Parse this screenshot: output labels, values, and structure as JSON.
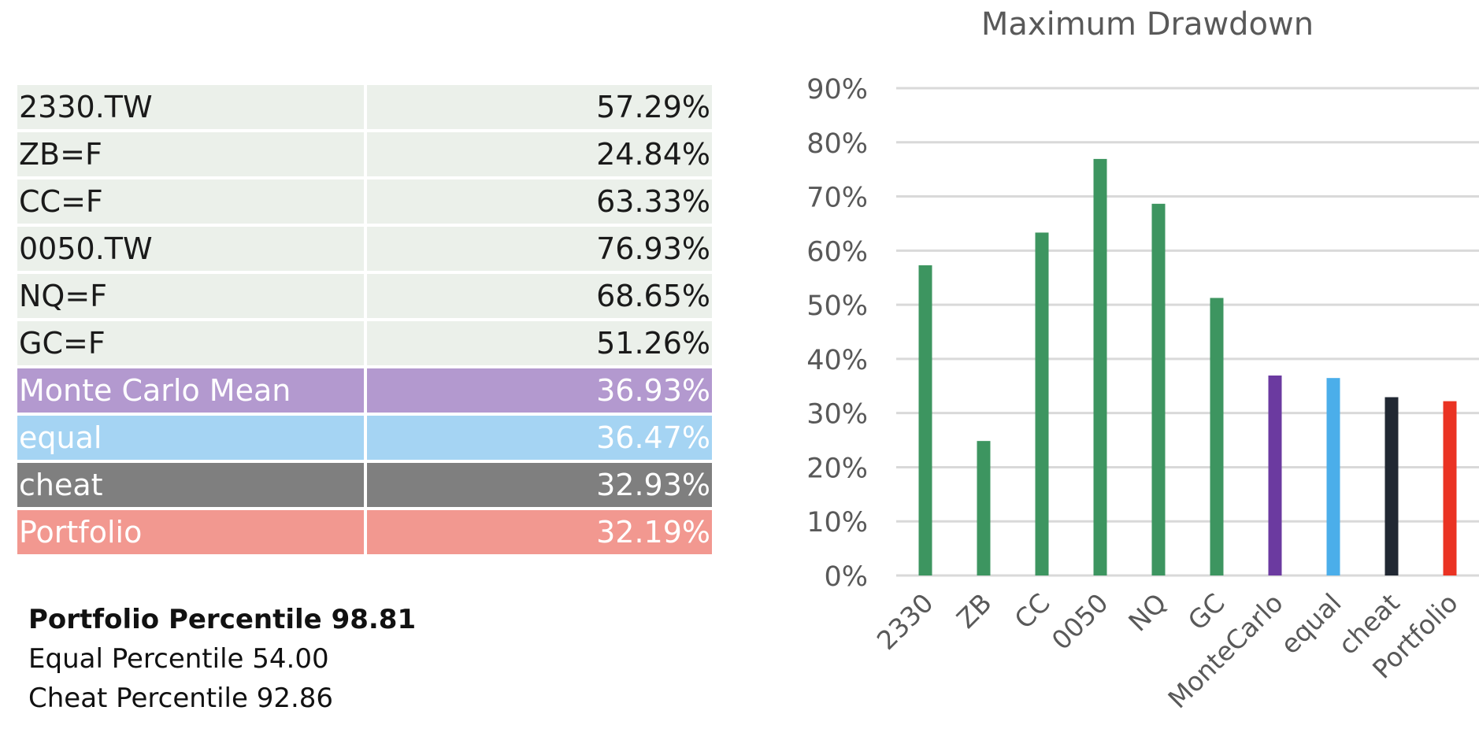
{
  "table": {
    "rows": [
      {
        "label": "2330.TW",
        "value": "57.29%",
        "style": "asset"
      },
      {
        "label": "ZB=F",
        "value": "24.84%",
        "style": "asset"
      },
      {
        "label": "CC=F",
        "value": "63.33%",
        "style": "asset"
      },
      {
        "label": "0050.TW",
        "value": "76.93%",
        "style": "asset"
      },
      {
        "label": "NQ=F",
        "value": "68.65%",
        "style": "asset"
      },
      {
        "label": "GC=F",
        "value": "51.26%",
        "style": "asset"
      },
      {
        "label": "Monte Carlo Mean",
        "value": "36.93%",
        "style": "montecarlo"
      },
      {
        "label": "equal",
        "value": "36.47%",
        "style": "equal"
      },
      {
        "label": "cheat",
        "value": "32.93%",
        "style": "cheat"
      },
      {
        "label": "Portfolio",
        "value": "32.19%",
        "style": "portfolio"
      }
    ],
    "colors": {
      "asset": "#ebf0ea",
      "montecarlo": "#b399cf",
      "equal": "#a5d4f3",
      "cheat": "#7f7f7f",
      "portfolio": "#f29890"
    }
  },
  "percentiles": [
    {
      "text": "Portfolio Percentile 98.81",
      "bold": true
    },
    {
      "text": "Equal Percentile 54.00",
      "bold": false
    },
    {
      "text": "Cheat Percentile 92.86",
      "bold": false
    }
  ],
  "chart_data": {
    "type": "bar",
    "title": "Maximum Drawdown",
    "xlabel": "",
    "ylabel": "",
    "categories": [
      "2330",
      "ZB",
      "CC",
      "0050",
      "NQ",
      "GC",
      "MonteCarlo",
      "equal",
      "cheat",
      "Portfolio"
    ],
    "values": [
      57.29,
      24.84,
      63.33,
      76.93,
      68.65,
      51.26,
      36.93,
      36.47,
      32.93,
      32.19
    ],
    "bar_colors": [
      "#3d9560",
      "#3d9560",
      "#3d9560",
      "#3d9560",
      "#3d9560",
      "#3d9560",
      "#6b3aa0",
      "#4baeea",
      "#212833",
      "#ea3323"
    ],
    "ylim": [
      0,
      90
    ],
    "yticks": [
      "0%",
      "10%",
      "20%",
      "30%",
      "40%",
      "50%",
      "60%",
      "70%",
      "80%",
      "90%"
    ],
    "grid": true,
    "legend": "none"
  }
}
